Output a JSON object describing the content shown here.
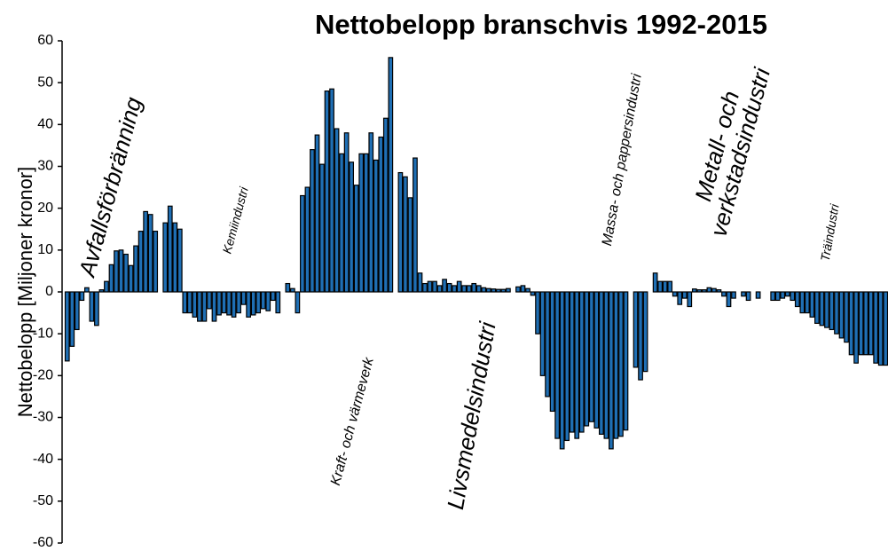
{
  "chart_data": {
    "type": "bar",
    "title": "Nettobelopp branschvis 1992-2015",
    "y_label": "Nettobelopp [Miljoner kronor]",
    "ylim": [
      -60,
      60
    ],
    "yticks": [
      60,
      50,
      40,
      30,
      20,
      10,
      0,
      -10,
      -20,
      -30,
      -40,
      -50,
      -60
    ],
    "edgecolor": "#000000",
    "series": [
      {
        "name": "Avfallsförbränning",
        "color": "#1f6fb4",
        "values": [
          -16.5,
          -13,
          -9,
          -2,
          1,
          -7,
          -8,
          0.5,
          2.5,
          6.5,
          9.8,
          10,
          9,
          6.3,
          11,
          14.5,
          19.2,
          18.5,
          14.5,
          0,
          16.5,
          20.5,
          16.5,
          15
        ]
      },
      {
        "name": "Kemiindustri",
        "color": "#1f6fb4",
        "values": [
          -5,
          -5,
          -6,
          -7,
          -7,
          -4,
          -7,
          -5.5,
          -5,
          -5.5,
          -6,
          -5,
          -3,
          -6,
          -5.5,
          -5,
          -4,
          -4.5,
          -2,
          -5,
          0,
          2,
          0.8,
          -5
        ]
      },
      {
        "name": "Kraft- och värmeverk",
        "color": "#1f6fb4",
        "values": [
          23,
          25,
          34,
          37.5,
          30.5,
          48,
          48.5,
          39,
          33,
          38,
          31,
          25.5,
          33,
          33,
          38,
          31.5,
          37,
          41.5,
          56,
          0,
          28.5,
          27.5,
          22.5,
          32
        ]
      },
      {
        "name": "Livsmedelsindustri",
        "color": "#1f6fb4",
        "values": [
          4.5,
          2,
          2.5,
          2.5,
          1.5,
          3,
          2,
          1.5,
          2.5,
          1.5,
          1.5,
          2,
          1.5,
          1,
          0.8,
          0.7,
          0.6,
          0.6,
          0.8,
          0,
          1.2,
          1.5,
          0.8,
          -0.8
        ]
      },
      {
        "name": "Massa- och pappersindustri",
        "color": "#1f6fb4",
        "values": [
          -10,
          -20,
          -25,
          -28.5,
          -35,
          -37.5,
          -35.5,
          -33.5,
          -35,
          -33.5,
          -32,
          -31,
          -32.5,
          -34,
          -35,
          -37.5,
          -35,
          -34.5,
          -33,
          0,
          -18,
          -21,
          -19,
          0
        ]
      },
      {
        "name": "Metall- och verkstadsindustri",
        "color": "#1f6fb4",
        "values": [
          4.5,
          2.5,
          2.5,
          2.5,
          -1,
          -3,
          -1.5,
          -3.5,
          0.7,
          0.5,
          0.5,
          1,
          0.8,
          0.5,
          -1,
          -3.5,
          -1.5,
          0,
          -1,
          -2,
          0,
          -1.5,
          0,
          0
        ]
      },
      {
        "name": "Träindustri",
        "color": "#1f6fb4",
        "values": [
          -2,
          -2,
          -1.5,
          -1,
          -2,
          -3.5,
          -5,
          -5,
          -6,
          -7.5,
          -8,
          -8.5,
          -9,
          -10,
          -11,
          -12,
          -15,
          -17,
          -15,
          -15,
          -15,
          -17,
          -17.5,
          -17.5
        ]
      }
    ]
  }
}
